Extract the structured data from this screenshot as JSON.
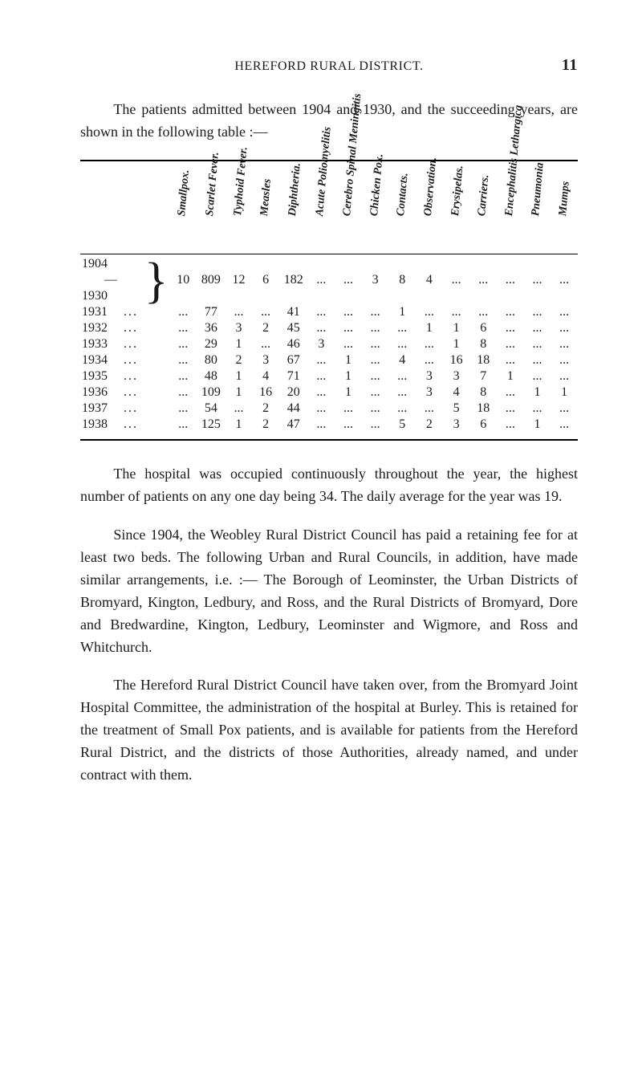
{
  "running_head": {
    "title": "HEREFORD RURAL DISTRICT.",
    "page_number": "11"
  },
  "intro": "The patients admitted between 1904 and 1930, and the succeeding years, are shown in the following table :—",
  "table": {
    "type": "table",
    "stub_label": "",
    "columns": [
      "Smallpox.",
      "Scarlet Fever.",
      "Typhoid Fever.",
      "Measles",
      "Diphtheria.",
      "Acute Poliomyelitis",
      "Cerebro Spinal Meningitis",
      "Chicken Pox.",
      "Contacts.",
      "Observation.",
      "Erysipelas.",
      "Carriers.",
      "Encephalitis Lethargica",
      "Pneumonia",
      "Mumps"
    ],
    "stub_rows_brace": [
      "1904",
      "—",
      "1930"
    ],
    "brace_row_values": [
      "10",
      "809",
      "12",
      "6",
      "182",
      "...",
      "...",
      "3",
      "8",
      "4",
      "...",
      "...",
      "...",
      "...",
      "..."
    ],
    "year_rows": [
      {
        "year": "1931",
        "v": [
          "...",
          "77",
          "...",
          "...",
          "41",
          "...",
          "...",
          "...",
          "1",
          "...",
          "...",
          "...",
          "...",
          "...",
          "..."
        ]
      },
      {
        "year": "1932",
        "v": [
          "...",
          "36",
          "3",
          "2",
          "45",
          "...",
          "...",
          "...",
          "...",
          "1",
          "1",
          "6",
          "...",
          "...",
          "..."
        ]
      },
      {
        "year": "1933",
        "v": [
          "...",
          "29",
          "1",
          "...",
          "46",
          "3",
          "...",
          "...",
          "...",
          "...",
          "1",
          "8",
          "...",
          "...",
          "..."
        ]
      },
      {
        "year": "1934",
        "v": [
          "...",
          "80",
          "2",
          "3",
          "67",
          "...",
          "1",
          "...",
          "4",
          "...",
          "16",
          "18",
          "...",
          "...",
          "..."
        ]
      },
      {
        "year": "1935",
        "v": [
          "...",
          "48",
          "1",
          "4",
          "71",
          "...",
          "1",
          "...",
          "...",
          "3",
          "3",
          "7",
          "1",
          "...",
          "..."
        ]
      },
      {
        "year": "1936",
        "v": [
          "...",
          "109",
          "1",
          "16",
          "20",
          "...",
          "1",
          "...",
          "...",
          "3",
          "4",
          "8",
          "...",
          "1",
          "1"
        ]
      },
      {
        "year": "1937",
        "v": [
          "...",
          "54",
          "...",
          "2",
          "44",
          "...",
          "...",
          "...",
          "...",
          "...",
          "5",
          "18",
          "...",
          "...",
          "..."
        ]
      },
      {
        "year": "1938",
        "v": [
          "...",
          "125",
          "1",
          "2",
          "47",
          "...",
          "...",
          "...",
          "5",
          "2",
          "3",
          "6",
          "...",
          "1",
          "..."
        ]
      }
    ],
    "rule_colors": {
      "thick": "#000000",
      "thin": "#000000"
    },
    "font_sizes": {
      "header_rot": 14,
      "body_cell": 16
    }
  },
  "para1": "The hospital was occupied continuously throughout the year, the highest number of patients on any one day being 34. The daily average for the year was 19.",
  "para2": "Since 1904, the Weobley Rural District Council has paid a retaining fee for at least two beds. The following Urban and Rural Councils, in addition, have made similar arrangements, i.e. :— The Borough of Leominster, the Urban Districts of Bromyard, Kington, Ledbury, and Ross, and the Rural Districts of Bromyard, Dore and Bredwardine, Kington, Ledbury, Leominster and Wigmore, and Ross and Whitchurch.",
  "para3": "The Hereford Rural District Council have taken over, from the Bromyard Joint Hospital Committee, the administration of the hospital at Burley. This is retained for the treatment of Small Pox patients, and is available for patients from the Hereford Rural District, and the districts of those Authorities, already named, and under contract with them."
}
